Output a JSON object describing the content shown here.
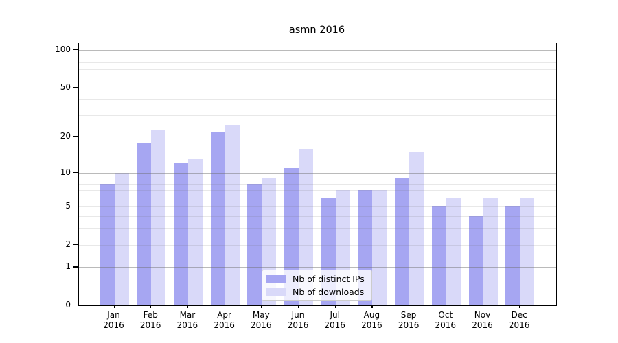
{
  "chart_data": {
    "type": "bar",
    "title": "asmn 2016",
    "categories": [
      "Jan",
      "Feb",
      "Mar",
      "Apr",
      "May",
      "Jun",
      "Jul",
      "Aug",
      "Sep",
      "Oct",
      "Nov",
      "Dec"
    ],
    "x_tick_second_line": "2016",
    "series": [
      {
        "name": "Nb of distinct IPs",
        "color": "#a6a6f2",
        "values": [
          8,
          18,
          12,
          22,
          8,
          11,
          6,
          7,
          9,
          5,
          4,
          5
        ]
      },
      {
        "name": "Nb of downloads",
        "color": "#d9d9f9",
        "values": [
          10,
          23,
          13,
          25,
          9,
          16,
          7,
          7,
          15,
          6,
          6,
          6
        ]
      }
    ],
    "yscale": "log1p",
    "ylim": [
      0,
      113
    ],
    "y_ticks": [
      0,
      1,
      2,
      5,
      10,
      20,
      50,
      100
    ],
    "y_major_ticks": [
      1,
      10,
      100
    ],
    "y_minor_gridlines": [
      3,
      4,
      6,
      7,
      8,
      9,
      30,
      40,
      60,
      70,
      80,
      90
    ],
    "grid": true,
    "legend_position": "lower-center"
  },
  "colors": {
    "grid_major": "rgba(110,110,110,0.48)",
    "grid_minor": "rgba(110,110,110,0.16)",
    "axis": "#000000",
    "bar_distinct_ips": "#a6a6f2",
    "bar_downloads": "#d9d9f9"
  }
}
